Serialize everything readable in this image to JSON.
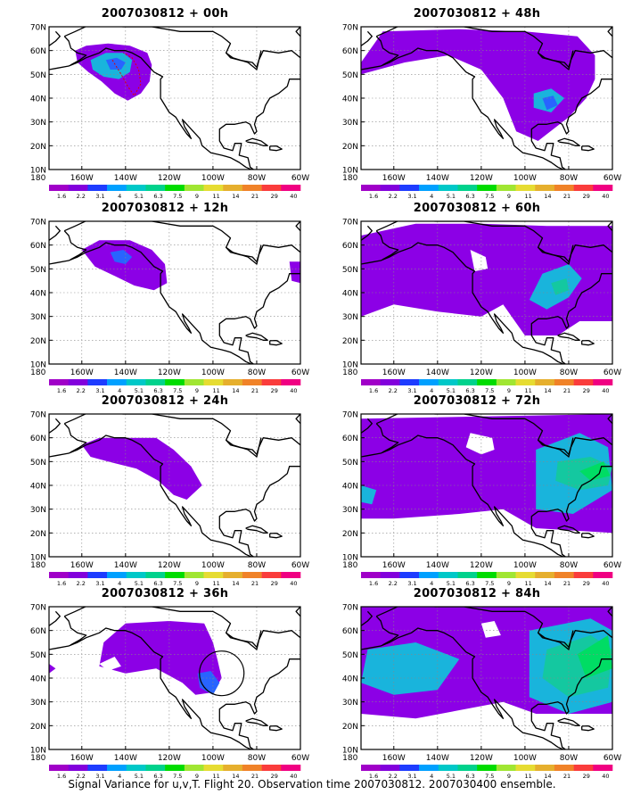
{
  "figure": {
    "caption": "Signal Variance for u,v,T. Flight 20. Observation time 2007030812. 2007030400 ensemble."
  },
  "axes": {
    "lat_labels": [
      "70N",
      "60N",
      "50N",
      "40N",
      "30N",
      "20N",
      "10N"
    ],
    "lon_labels": [
      "180",
      "160W",
      "140W",
      "120W",
      "100W",
      "80W",
      "60W"
    ]
  },
  "colorbar": {
    "labels": [
      "1.6",
      "2.2",
      "3.1",
      "4",
      "5.1",
      "6.3",
      "7.5",
      "9",
      "11",
      "14",
      "21",
      "29",
      "40"
    ],
    "colors": [
      "#a000c8",
      "#8200dc",
      "#1e3cff",
      "#00a0ff",
      "#00c8c8",
      "#00d28c",
      "#00dc00",
      "#a0e632",
      "#e6dc32",
      "#e6af2d",
      "#f08228",
      "#fa3c3c",
      "#f00082"
    ]
  },
  "panels": [
    {
      "title": "2007030812 + 00h",
      "level": 1
    },
    {
      "title": "2007030812 + 12h",
      "level": 2
    },
    {
      "title": "2007030812 + 24h",
      "level": 3
    },
    {
      "title": "2007030812 + 36h",
      "level": 4
    },
    {
      "title": "2007030812 + 48h",
      "level": 5
    },
    {
      "title": "2007030812 + 60h",
      "level": 6
    },
    {
      "title": "2007030812 + 72h",
      "level": 7
    },
    {
      "title": "2007030812 + 84h",
      "level": 8
    }
  ]
}
